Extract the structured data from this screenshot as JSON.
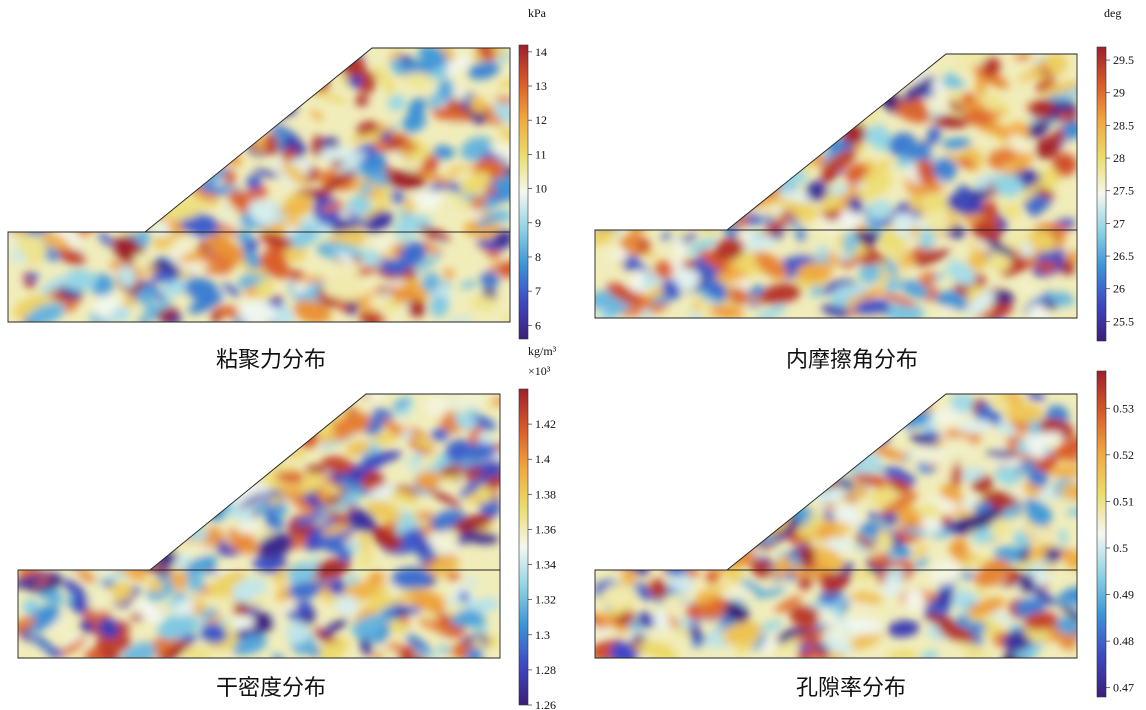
{
  "chart_data": [
    {
      "type": "heatmap",
      "title": "粘聚力分布",
      "unit": "kPa",
      "unit_exp": "",
      "range": [
        5.6,
        14.2
      ],
      "ticks": [
        6,
        7,
        8,
        9,
        10,
        11,
        12,
        13,
        14
      ],
      "tick_labels": [
        "6",
        "7",
        "8",
        "9",
        "10",
        "11",
        "12",
        "13",
        "14"
      ],
      "seed": 11
    },
    {
      "type": "heatmap",
      "title": "内摩擦角分布",
      "unit": "deg",
      "unit_exp": "",
      "range": [
        25.2,
        29.7
      ],
      "ticks": [
        25.5,
        26,
        26.5,
        27,
        27.5,
        28,
        28.5,
        29,
        29.5
      ],
      "tick_labels": [
        "25.5",
        "26",
        "26.5",
        "27",
        "27.5",
        "28",
        "28.5",
        "29",
        "29.5"
      ],
      "seed": 29
    },
    {
      "type": "heatmap",
      "title": "干密度分布",
      "unit": "kg/m³",
      "unit_exp": "×10³",
      "range": [
        1.26,
        1.44
      ],
      "ticks": [
        1.26,
        1.28,
        1.3,
        1.32,
        1.34,
        1.36,
        1.38,
        1.4,
        1.42
      ],
      "tick_labels": [
        "1.26",
        "1.28",
        "1.3",
        "1.32",
        "1.34",
        "1.36",
        "1.38",
        "1.4",
        "1.42"
      ],
      "seed": 47
    },
    {
      "type": "heatmap",
      "title": "孔隙率分布",
      "unit": "",
      "unit_exp": "",
      "range": [
        0.468,
        0.538
      ],
      "ticks": [
        0.47,
        0.48,
        0.49,
        0.5,
        0.51,
        0.52,
        0.53
      ],
      "tick_labels": [
        "0.47",
        "0.48",
        "0.49",
        "0.5",
        "0.51",
        "0.52",
        "0.53"
      ],
      "seed": 73
    }
  ],
  "colormap": [
    "#3b1f78",
    "#3f47c4",
    "#3b93d6",
    "#8fd3e4",
    "#f4f8f0",
    "#ecdc6c",
    "#f0a83c",
    "#d9592a",
    "#9e1f2c"
  ]
}
